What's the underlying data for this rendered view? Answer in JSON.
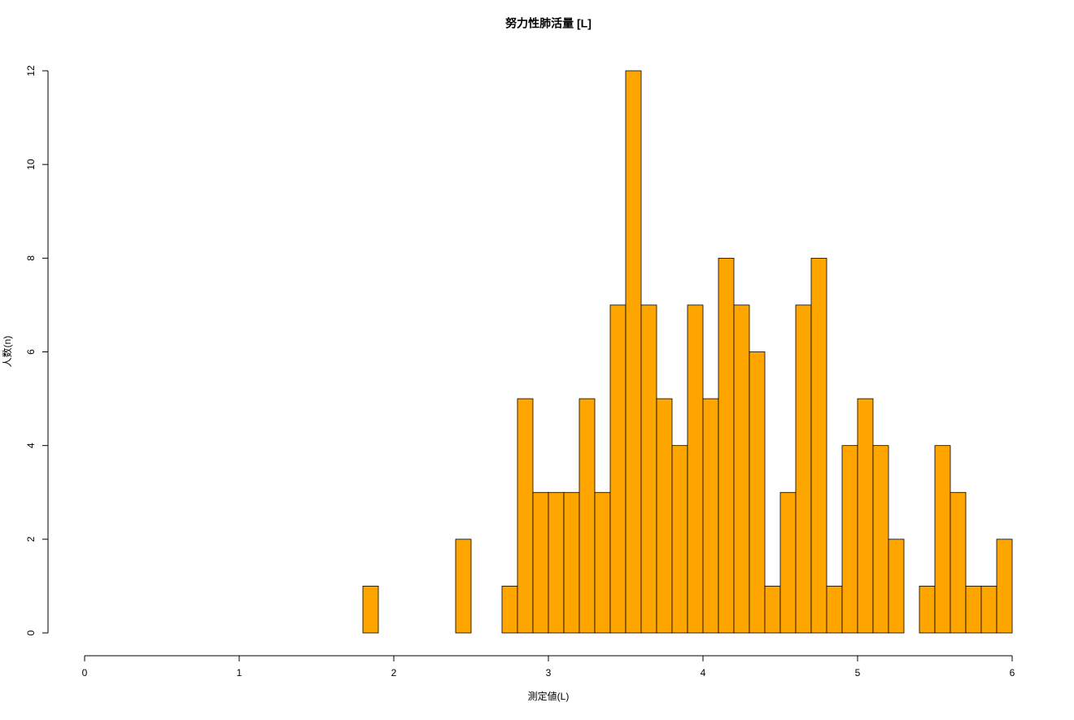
{
  "chart_data": {
    "type": "histogram",
    "title": "努力性肺活量 [L]",
    "x_label": "測定値(L)",
    "y_label": "人数(n)",
    "bins": [
      1.8,
      1.9,
      2.0,
      2.1,
      2.2,
      2.3,
      2.4,
      2.5,
      2.6,
      2.7,
      2.8,
      2.9,
      3.0,
      3.1,
      3.2,
      3.3,
      3.4,
      3.5,
      3.6,
      3.7,
      3.8,
      3.9,
      4.0,
      4.1,
      4.2,
      4.3,
      4.4,
      4.5,
      4.6,
      4.7,
      4.8,
      4.9,
      5.0,
      5.1,
      5.2,
      5.3,
      5.4,
      5.5,
      5.6,
      5.7,
      5.8,
      5.9,
      6.0
    ],
    "values": [
      1,
      0,
      0,
      0,
      0,
      0,
      2,
      0,
      0,
      1,
      5,
      3,
      3,
      3,
      5,
      3,
      7,
      12,
      7,
      5,
      4,
      7,
      5,
      8,
      7,
      6,
      1,
      3,
      7,
      8,
      1,
      4,
      5,
      4,
      2,
      0,
      1,
      4,
      3,
      1,
      1,
      2
    ],
    "color": "#FFA500",
    "xlim": [
      0,
      6
    ],
    "xticks": [
      0,
      1,
      2,
      3,
      4,
      5,
      6
    ],
    "ylim": [
      0,
      12
    ],
    "yticks": [
      0,
      2,
      4,
      6,
      8,
      10,
      12
    ]
  }
}
